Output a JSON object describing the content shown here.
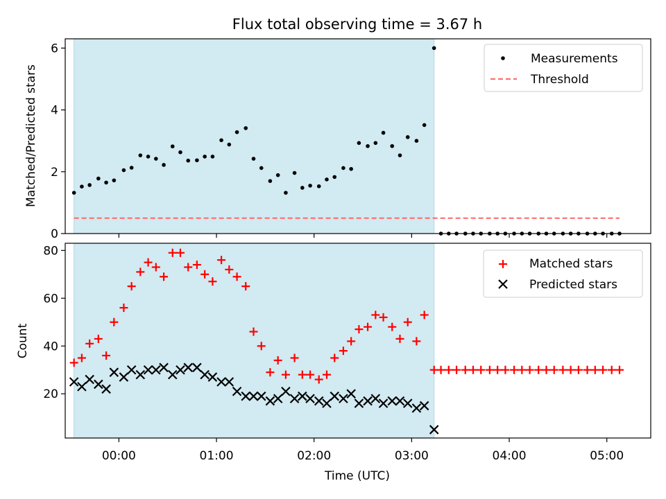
{
  "title": "Flux total observing time = 3.67 h",
  "colors": {
    "observing_span": "#add8e6",
    "measurement": "#000000",
    "threshold": "#ff6666",
    "matched": "#ff0000",
    "predicted": "#000000"
  },
  "x_axis": {
    "label": "Time (UTC)",
    "range_hours": [
      -0.55,
      5.45
    ],
    "ticks": [
      {
        "value": 0,
        "label": "00:00"
      },
      {
        "value": 1,
        "label": "01:00"
      },
      {
        "value": 2,
        "label": "02:00"
      },
      {
        "value": 3,
        "label": "03:00"
      },
      {
        "value": 4,
        "label": "04:00"
      },
      {
        "value": 5,
        "label": "05:00"
      }
    ]
  },
  "chart_data": [
    {
      "type": "scatter",
      "panel": "top",
      "title": "Flux total observing time = 3.67 h",
      "ylabel": "Matched/Predicted stars",
      "ylim": [
        0,
        6.3
      ],
      "yticks": [
        0,
        2,
        4,
        6
      ],
      "observing_span": [
        -0.46,
        3.23
      ],
      "legend_position": "top-right",
      "series": [
        {
          "name": "Measurements",
          "type": "scatter",
          "x": [
            -0.46,
            -0.38,
            -0.3,
            -0.21,
            -0.13,
            -0.05,
            0.05,
            0.13,
            0.22,
            0.3,
            0.38,
            0.46,
            0.55,
            0.63,
            0.71,
            0.8,
            0.88,
            0.96,
            1.05,
            1.13,
            1.21,
            1.3,
            1.38,
            1.46,
            1.55,
            1.63,
            1.71,
            1.8,
            1.88,
            1.96,
            2.05,
            2.13,
            2.21,
            2.3,
            2.38,
            2.46,
            2.55,
            2.63,
            2.71,
            2.8,
            2.88,
            2.96,
            3.05,
            3.13,
            3.23,
            3.3,
            3.38,
            3.46,
            3.55,
            3.63,
            3.71,
            3.8,
            3.88,
            3.96,
            4.05,
            4.13,
            4.21,
            4.3,
            4.38,
            4.46,
            4.55,
            4.63,
            4.71,
            4.8,
            4.88,
            4.96,
            5.05,
            5.13
          ],
          "y": [
            1.32,
            1.52,
            1.57,
            1.78,
            1.65,
            1.72,
            2.05,
            2.13,
            2.53,
            2.49,
            2.42,
            2.22,
            2.82,
            2.63,
            2.36,
            2.37,
            2.49,
            2.49,
            3.02,
            2.88,
            3.28,
            3.41,
            2.42,
            2.12,
            1.7,
            1.89,
            1.32,
            1.96,
            1.48,
            1.55,
            1.53,
            1.75,
            1.83,
            2.12,
            2.09,
            2.93,
            2.83,
            2.93,
            3.26,
            2.83,
            2.53,
            3.12,
            3.0,
            3.51,
            6.0,
            0,
            0,
            0,
            0,
            0,
            0,
            0,
            0,
            0,
            0,
            0,
            0,
            0,
            0,
            0,
            0,
            0,
            0,
            0,
            0,
            0,
            0,
            0
          ]
        },
        {
          "name": "Threshold",
          "type": "line",
          "x": [
            -0.46,
            5.13
          ],
          "y": [
            0.5,
            0.5
          ]
        }
      ]
    },
    {
      "type": "scatter",
      "panel": "bottom",
      "xlabel": "Time (UTC)",
      "ylabel": "Count",
      "ylim": [
        1.5,
        83
      ],
      "yticks": [
        20,
        40,
        60,
        80
      ],
      "observing_span": [
        -0.46,
        3.23
      ],
      "legend_position": "top-right",
      "series": [
        {
          "name": "Matched stars",
          "type": "scatter",
          "x": [
            -0.46,
            -0.38,
            -0.3,
            -0.21,
            -0.13,
            -0.05,
            0.05,
            0.13,
            0.22,
            0.3,
            0.38,
            0.46,
            0.55,
            0.63,
            0.71,
            0.8,
            0.88,
            0.96,
            1.05,
            1.13,
            1.21,
            1.3,
            1.38,
            1.46,
            1.55,
            1.63,
            1.71,
            1.8,
            1.88,
            1.96,
            2.05,
            2.13,
            2.21,
            2.3,
            2.38,
            2.46,
            2.55,
            2.63,
            2.71,
            2.8,
            2.88,
            2.96,
            3.05,
            3.13,
            3.23,
            3.3,
            3.38,
            3.46,
            3.55,
            3.63,
            3.71,
            3.8,
            3.88,
            3.96,
            4.05,
            4.13,
            4.21,
            4.3,
            4.38,
            4.46,
            4.55,
            4.63,
            4.71,
            4.8,
            4.88,
            4.96,
            5.05,
            5.13
          ],
          "y": [
            33,
            35,
            41,
            43,
            36,
            50,
            56,
            65,
            71,
            75,
            73,
            69,
            79,
            79,
            73,
            74,
            70,
            67,
            76,
            72,
            69,
            65,
            46,
            40,
            29,
            34,
            28,
            35,
            28,
            28,
            26,
            28,
            35,
            38,
            42,
            47,
            48,
            53,
            52,
            48,
            43,
            50,
            42,
            53,
            30,
            30,
            30,
            30,
            30,
            30,
            30,
            30,
            30,
            30,
            30,
            30,
            30,
            30,
            30,
            30,
            30,
            30,
            30,
            30,
            30,
            30,
            30,
            30
          ]
        },
        {
          "name": "Predicted stars",
          "type": "scatter",
          "x": [
            -0.46,
            -0.38,
            -0.3,
            -0.21,
            -0.13,
            -0.05,
            0.05,
            0.13,
            0.22,
            0.3,
            0.38,
            0.46,
            0.55,
            0.63,
            0.71,
            0.8,
            0.88,
            0.96,
            1.05,
            1.13,
            1.21,
            1.3,
            1.38,
            1.46,
            1.55,
            1.63,
            1.71,
            1.8,
            1.88,
            1.96,
            2.05,
            2.13,
            2.21,
            2.3,
            2.38,
            2.46,
            2.55,
            2.63,
            2.71,
            2.8,
            2.88,
            2.96,
            3.05,
            3.13,
            3.23
          ],
          "y": [
            25,
            23,
            26,
            24,
            22,
            29,
            27,
            30,
            28,
            30,
            30,
            31,
            28,
            30,
            31,
            31,
            28,
            27,
            25,
            25,
            21,
            19,
            19,
            19,
            17,
            18,
            21,
            18,
            19,
            18,
            17,
            16,
            19,
            18,
            20,
            16,
            17,
            18,
            16,
            17,
            17,
            16,
            14,
            15,
            5
          ]
        }
      ]
    }
  ]
}
